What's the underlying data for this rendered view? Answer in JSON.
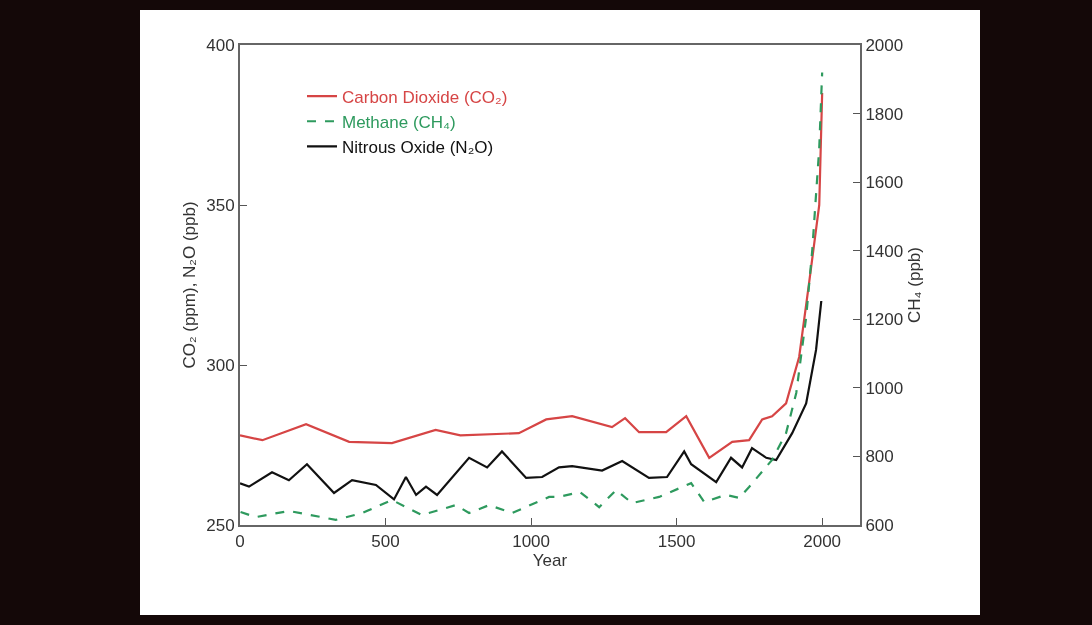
{
  "chart_data": {
    "type": "line",
    "xlabel": "Year",
    "ylabel": "CO₂ (ppm), N₂O (ppb)",
    "y2label": "CH₄ (ppb)",
    "xlim": [
      0,
      2130
    ],
    "xticks": [
      0,
      500,
      1000,
      1500,
      2000
    ],
    "ylim": [
      250,
      400
    ],
    "yticks": [
      250,
      300,
      350,
      400
    ],
    "y2lim": [
      600,
      2000
    ],
    "y2ticks": [
      600,
      800,
      1000,
      1200,
      1400,
      1600,
      1800,
      2000
    ],
    "grid": false,
    "legend": "top left",
    "marker": "none",
    "series": [
      {
        "name": "Carbon Dioxide (CO₂)",
        "color": "#d64545",
        "line_style": "solid",
        "x": [
          0,
          77,
          227,
          375,
          522,
          672,
          757,
          958,
          1052,
          1141,
          1278,
          1323,
          1371,
          1464,
          1533,
          1612,
          1691,
          1749,
          1794,
          1828,
          1876,
          1921,
          1955,
          1990,
          2000
        ],
        "values": [
          278,
          276.5,
          281.5,
          276,
          275.6,
          279.7,
          278,
          278.7,
          283,
          284,
          280.6,
          283.4,
          279,
          279,
          284,
          271,
          276,
          276.5,
          283,
          284,
          288,
          302.5,
          325.6,
          350,
          385
        ]
      },
      {
        "name": "Methane (CH₄)",
        "color": "#2e9a5e",
        "line_style": "dashed",
        "axis": "y2",
        "x": [
          2,
          54,
          168,
          329,
          420,
          522,
          625,
          741,
          787,
          856,
          935,
          1062,
          1096,
          1168,
          1234,
          1292,
          1347,
          1440,
          1550,
          1595,
          1670,
          1715,
          1749,
          1828,
          1876,
          1911,
          1945,
          1966,
          1990,
          2000
        ],
        "values": [
          638,
          623,
          641,
          615,
          635,
          673,
          629,
          658,
          635,
          658,
          635,
          682,
          682,
          696,
          652,
          702,
          664,
          682,
          722,
          667,
          688,
          679,
          711,
          790,
          868,
          985,
          1206,
          1402,
          1700,
          1920
        ]
      },
      {
        "name": "Nitrous Oxide (N₂O)",
        "color": "#111111",
        "line_style": "solid",
        "x": [
          0,
          31,
          110,
          168,
          230,
          323,
          385,
          467,
          529,
          570,
          605,
          639,
          677,
          787,
          849,
          900,
          983,
          1038,
          1096,
          1141,
          1244,
          1313,
          1405,
          1467,
          1526,
          1550,
          1636,
          1687,
          1725,
          1759,
          1808,
          1842,
          1897,
          1945,
          1979,
          1997
        ],
        "values": [
          263,
          262,
          266.5,
          264,
          269,
          260,
          264,
          262.5,
          258,
          265,
          259.4,
          262,
          259.4,
          271,
          268,
          273,
          264.7,
          265,
          268,
          268.4,
          267,
          270,
          264.7,
          265,
          273,
          269,
          263.4,
          271,
          268,
          274,
          271,
          270.3,
          278.7,
          288,
          304.7,
          320
        ]
      }
    ]
  }
}
